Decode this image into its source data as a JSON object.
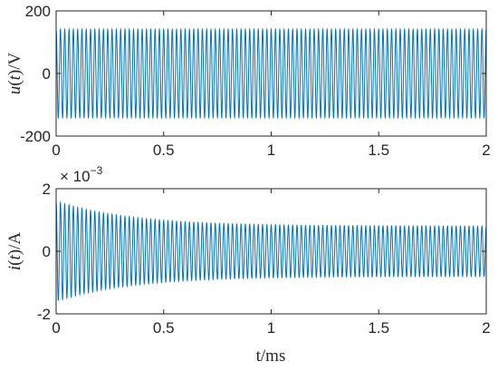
{
  "chart_data": [
    {
      "type": "line",
      "title": "",
      "xlabel": "",
      "ylabel": {
        "pre": "u",
        "mid": "(",
        "var": "t",
        "post": ")/V"
      },
      "xlim": [
        0,
        2
      ],
      "ylim": [
        -200,
        200
      ],
      "x_ticks": [
        0,
        0.5,
        1,
        1.5,
        2
      ],
      "x_tick_labels": [
        "0",
        "0.5",
        "1",
        "1.5",
        "2"
      ],
      "y_ticks": [
        200,
        0,
        -200
      ],
      "y_tick_labels": [
        "200",
        "0",
        "-200"
      ],
      "grid": false,
      "color": "#0072bd",
      "series": [
        {
          "signal": "sinusoid",
          "amplitude": 141,
          "offset": 0,
          "cycles_over_span": 100,
          "x_start": 0,
          "x_end": 2,
          "decay": "none"
        }
      ]
    },
    {
      "type": "line",
      "title": "",
      "xlabel": "t/ms",
      "ylabel": {
        "pre": "i",
        "mid": "(",
        "var": "t",
        "post": ")/A"
      },
      "xlim": [
        0,
        2
      ],
      "ylim": [
        -2,
        2
      ],
      "y_exponent_label": "× 10",
      "y_exponent_power": "−3",
      "x_ticks": [
        0,
        0.5,
        1,
        1.5,
        2
      ],
      "x_tick_labels": [
        "0",
        "0.5",
        "1",
        "1.5",
        "2"
      ],
      "y_ticks": [
        2,
        0,
        -2
      ],
      "y_tick_labels": [
        "2",
        "0",
        "-2"
      ],
      "grid": false,
      "color": "#0072bd",
      "series": [
        {
          "signal": "damped_sinusoid",
          "steady_amplitude": 0.8,
          "initial_amplitude": 1.6,
          "decay_time_ms": 0.35,
          "offset": 0,
          "cycles_over_span": 100,
          "x_start": 0,
          "x_end": 2
        }
      ]
    }
  ]
}
